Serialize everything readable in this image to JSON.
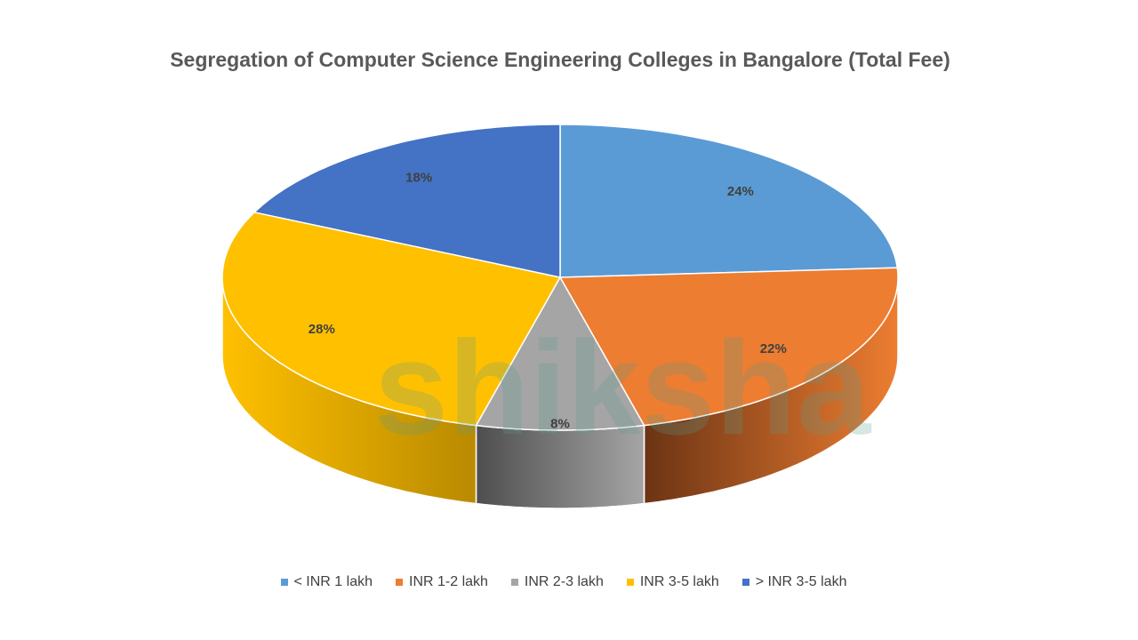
{
  "chart_data": {
    "type": "pie",
    "style": "3d",
    "title": "Segregation of Computer Science Engineering Colleges in Bangalore (Total Fee)",
    "categories": [
      "< INR 1 lakh",
      "INR 1-2 lakh",
      "INR 2-3 lakh",
      "INR 3-5 lakh",
      "> INR 3-5 lakh"
    ],
    "values": [
      24,
      22,
      8,
      28,
      18
    ],
    "labels": [
      "24%",
      "22%",
      "8%",
      "28%",
      "18%"
    ],
    "colors": [
      "#5B9BD5",
      "#ED7D31",
      "#A5A5A5",
      "#FFC000",
      "#4472C4"
    ],
    "side_colors": [
      "#3a6a96",
      "#6b3414",
      "#4e4e4e",
      "#b98a00",
      "#2d4f8a"
    ],
    "legend_position": "bottom"
  },
  "watermark": "shiksha"
}
